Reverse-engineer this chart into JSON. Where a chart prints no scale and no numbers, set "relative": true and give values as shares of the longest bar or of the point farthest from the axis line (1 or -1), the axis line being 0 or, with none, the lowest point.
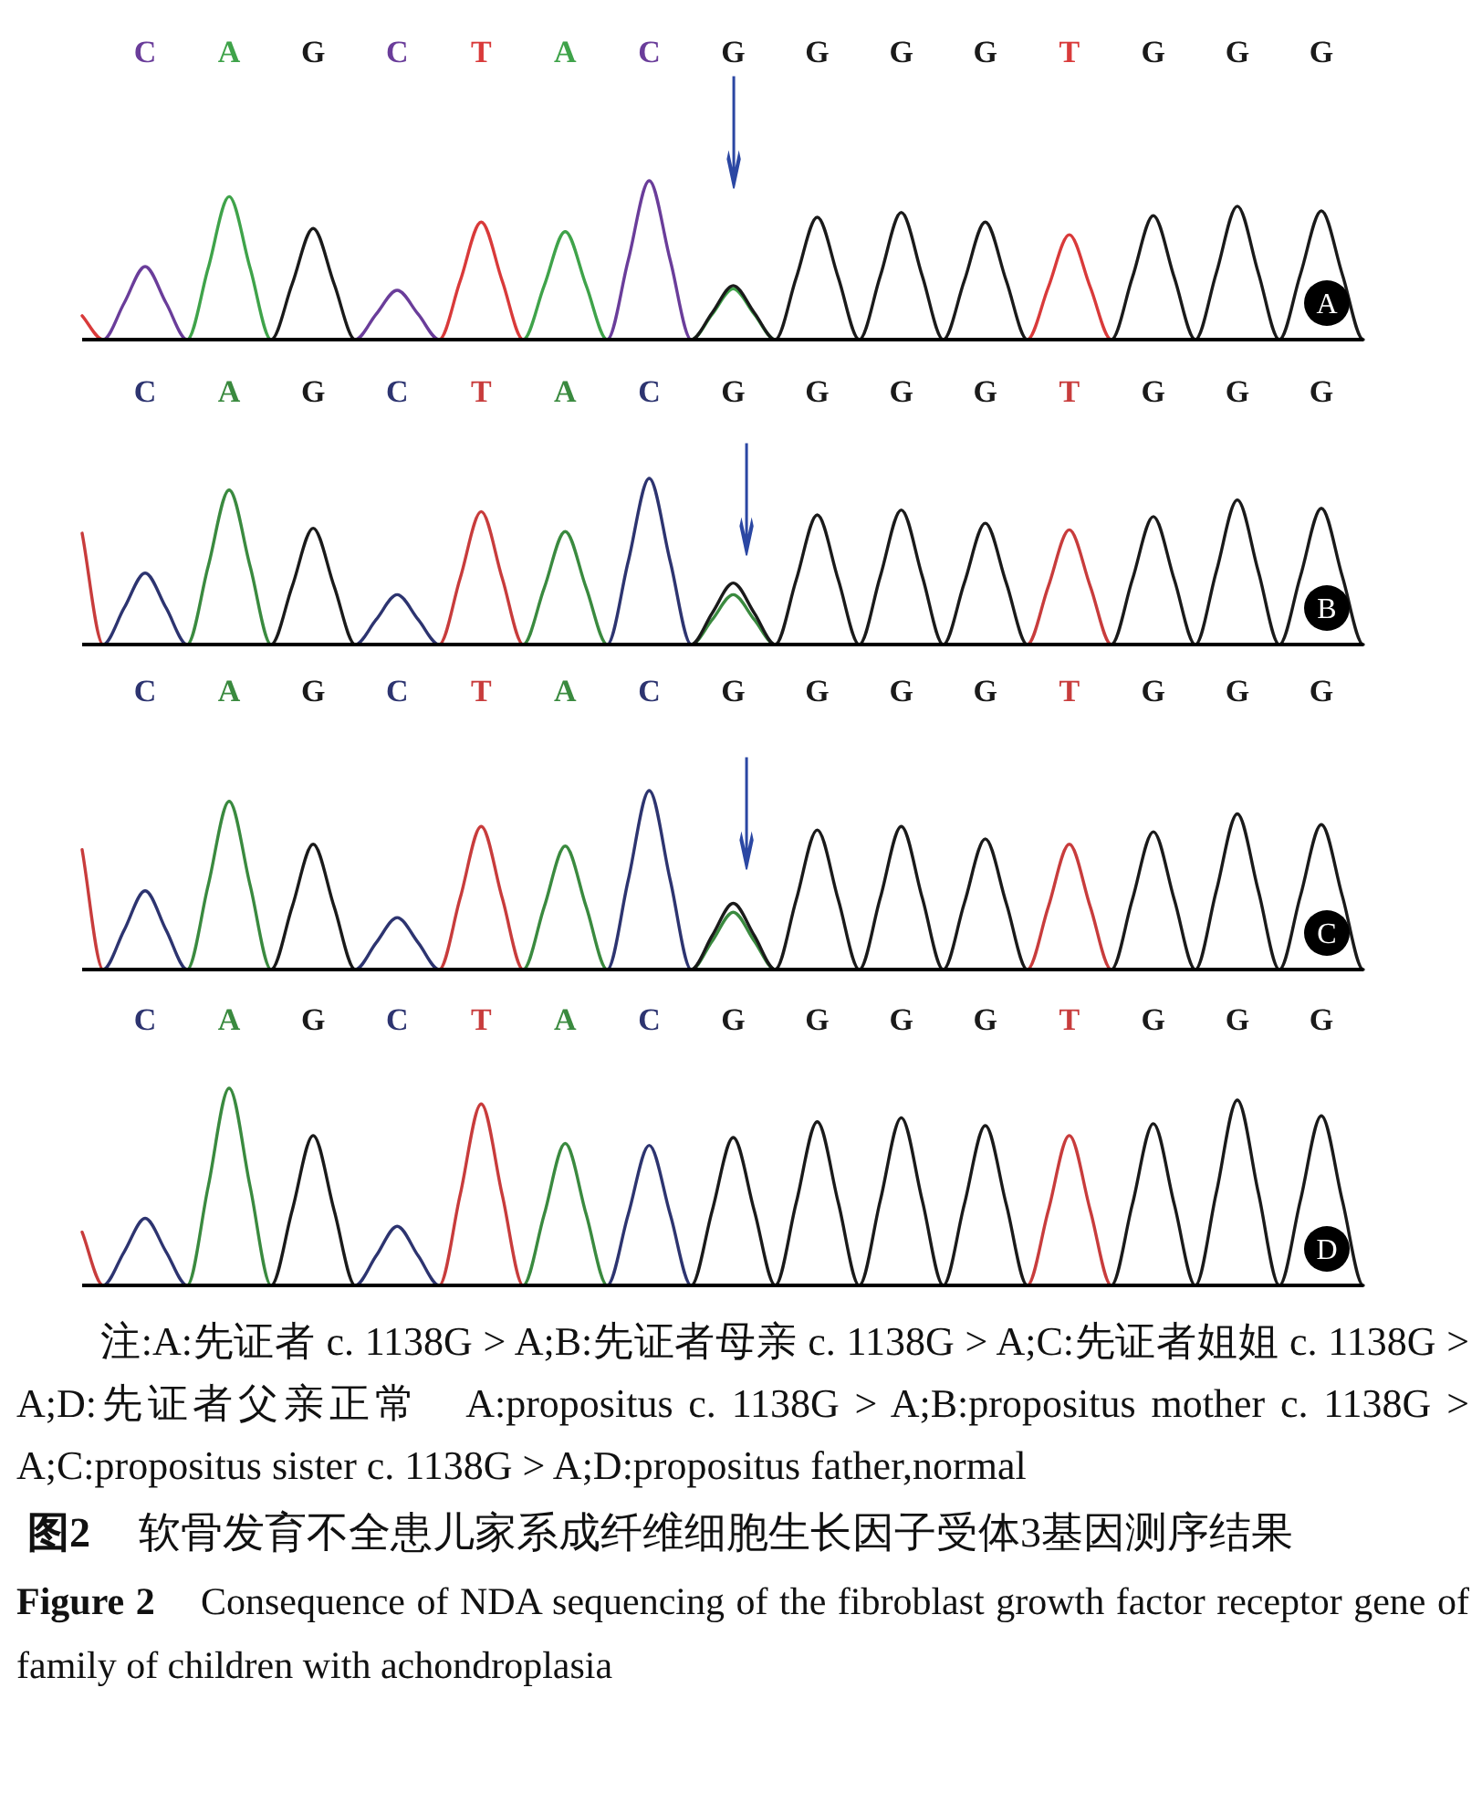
{
  "chart_data": [
    {
      "type": "line",
      "title": "A",
      "relative": true,
      "categories": [
        null,
        null,
        null,
        "C",
        null,
        null,
        null,
        "A",
        null,
        null,
        null,
        "G",
        null,
        null,
        null,
        "C",
        null,
        null,
        null,
        "T",
        null,
        null,
        null,
        "A",
        null,
        null,
        null,
        "C",
        null,
        null,
        null,
        "G",
        null,
        null,
        null,
        "G",
        null,
        null,
        null,
        "G",
        null,
        null,
        null,
        "G",
        null,
        null,
        null,
        "T",
        null,
        null,
        null,
        "G",
        null,
        null,
        null,
        "G",
        null,
        null,
        null,
        "G",
        null,
        null
      ],
      "annotations": [
        "↓"
      ],
      "series": [
        {
          "color": "#6a3d9a",
          "values": [
            null,
            0,
            0.23,
            0.46,
            0.23,
            0,
            null,
            null,
            null,
            null,
            null,
            null,
            null,
            0,
            0.16,
            0.31,
            0.16,
            0,
            null,
            null,
            null,
            null,
            null,
            null,
            null,
            0,
            0.5,
            1,
            0.5,
            0,
            null,
            null,
            null,
            null,
            null,
            null,
            null,
            null,
            null,
            null,
            null,
            null,
            null,
            null,
            null,
            null,
            null,
            null,
            null,
            null,
            null,
            null,
            null,
            null,
            null,
            null,
            null,
            null,
            null,
            null,
            null,
            null
          ]
        },
        {
          "color": "#3fa34a",
          "values": [
            null,
            null,
            null,
            null,
            null,
            0,
            0.45,
            0.9,
            0.45,
            0,
            null,
            null,
            null,
            null,
            null,
            null,
            null,
            null,
            null,
            null,
            null,
            0,
            0.34,
            0.68,
            0.34,
            0,
            null,
            null,
            null,
            0,
            0.16,
            0.32,
            0.16,
            0,
            null,
            null,
            null,
            null,
            null,
            null,
            null,
            null,
            null,
            null,
            null,
            null,
            null,
            null,
            null,
            null,
            null,
            null,
            null,
            null,
            null,
            null,
            null,
            null,
            null,
            null,
            null,
            null
          ]
        },
        {
          "color": "#1a1a1a",
          "values": [
            null,
            null,
            null,
            null,
            null,
            null,
            null,
            null,
            null,
            0,
            0.35,
            0.7,
            0.35,
            0,
            null,
            null,
            null,
            null,
            null,
            null,
            null,
            null,
            null,
            null,
            null,
            null,
            null,
            null,
            null,
            0,
            0.17,
            0.34,
            0.17,
            0,
            0.39,
            0.77,
            0.39,
            0,
            0.4,
            0.8,
            0.4,
            0,
            0.37,
            0.74,
            0.37,
            0,
            null,
            null,
            null,
            0,
            0.39,
            0.78,
            0.39,
            0,
            0.42,
            0.84,
            0.42,
            0,
            0.41,
            0.81,
            0.41,
            0
          ]
        },
        {
          "color": "#d93a3a",
          "values": [
            0.15,
            0,
            null,
            null,
            null,
            null,
            null,
            null,
            null,
            null,
            null,
            null,
            null,
            null,
            null,
            null,
            null,
            0,
            0.37,
            0.74,
            0.37,
            0,
            null,
            null,
            null,
            null,
            null,
            null,
            null,
            null,
            null,
            null,
            null,
            null,
            null,
            null,
            null,
            null,
            null,
            null,
            null,
            null,
            null,
            null,
            null,
            0,
            0.33,
            0.66,
            0.33,
            0,
            null,
            null,
            null,
            null,
            null,
            null,
            null,
            null,
            null,
            null,
            null,
            null
          ]
        }
      ]
    },
    {
      "type": "line",
      "title": "B",
      "relative": true,
      "categories": [
        null,
        null,
        null,
        "C",
        null,
        null,
        null,
        "A",
        null,
        null,
        null,
        "G",
        null,
        null,
        null,
        "C",
        null,
        null,
        null,
        "T",
        null,
        null,
        null,
        "A",
        null,
        null,
        null,
        "C",
        null,
        null,
        null,
        "G",
        null,
        null,
        null,
        "G",
        null,
        null,
        null,
        "G",
        null,
        null,
        null,
        "G",
        null,
        null,
        null,
        "T",
        null,
        null,
        null,
        "G",
        null,
        null,
        null,
        "G",
        null,
        null,
        null,
        "G",
        null,
        null
      ],
      "annotations": [
        "↓"
      ],
      "series": [
        {
          "color": "#2d3470",
          "values": [
            null,
            0,
            0.22,
            0.43,
            0.22,
            0,
            null,
            null,
            null,
            null,
            null,
            null,
            null,
            0,
            0.15,
            0.3,
            0.15,
            0,
            null,
            null,
            null,
            null,
            null,
            null,
            null,
            0,
            0.5,
            1,
            0.5,
            0,
            null,
            null,
            null,
            null,
            null,
            null,
            null,
            null,
            null,
            null,
            null,
            null,
            null,
            null,
            null,
            null,
            null,
            null,
            null,
            null,
            null,
            null,
            null,
            null,
            null,
            null,
            null,
            null,
            null,
            null,
            null,
            null
          ]
        },
        {
          "color": "#3a8a3f",
          "values": [
            null,
            null,
            null,
            null,
            null,
            0,
            0.47,
            0.93,
            0.47,
            0,
            null,
            null,
            null,
            null,
            null,
            null,
            null,
            null,
            null,
            null,
            null,
            0,
            0.34,
            0.68,
            0.34,
            0,
            null,
            null,
            null,
            0,
            0.15,
            0.3,
            0.15,
            0,
            null,
            null,
            null,
            null,
            null,
            null,
            null,
            null,
            null,
            null,
            null,
            null,
            null,
            null,
            null,
            null,
            null,
            null,
            null,
            null,
            null,
            null,
            null,
            null,
            null,
            null,
            null,
            null
          ]
        },
        {
          "color": "#1a1a1a",
          "values": [
            null,
            null,
            null,
            null,
            null,
            null,
            null,
            null,
            null,
            0,
            0.35,
            0.7,
            0.35,
            0,
            null,
            null,
            null,
            null,
            null,
            null,
            null,
            null,
            null,
            null,
            null,
            null,
            null,
            null,
            null,
            0,
            0.19,
            0.37,
            0.19,
            0,
            0.39,
            0.78,
            0.39,
            0,
            0.41,
            0.81,
            0.41,
            0,
            0.37,
            0.73,
            0.37,
            0,
            null,
            null,
            null,
            0,
            0.39,
            0.77,
            0.39,
            0,
            0.44,
            0.87,
            0.44,
            0,
            0.41,
            0.82,
            0.41,
            0
          ]
        },
        {
          "color": "#c83c3c",
          "values": [
            0.67,
            0,
            null,
            null,
            null,
            null,
            null,
            null,
            null,
            null,
            null,
            null,
            null,
            null,
            null,
            null,
            null,
            0,
            0.4,
            0.8,
            0.4,
            0,
            null,
            null,
            null,
            null,
            null,
            null,
            null,
            null,
            null,
            null,
            null,
            null,
            null,
            null,
            null,
            null,
            null,
            null,
            null,
            null,
            null,
            null,
            null,
            0,
            0.35,
            0.69,
            0.35,
            0,
            null,
            null,
            null,
            null,
            null,
            null,
            null,
            null,
            null,
            null,
            null,
            null
          ]
        }
      ]
    },
    {
      "type": "line",
      "title": "C",
      "relative": true,
      "categories": [
        null,
        null,
        null,
        "C",
        null,
        null,
        null,
        "A",
        null,
        null,
        null,
        "G",
        null,
        null,
        null,
        "C",
        null,
        null,
        null,
        "T",
        null,
        null,
        null,
        "A",
        null,
        null,
        null,
        "C",
        null,
        null,
        null,
        "G",
        null,
        null,
        null,
        "G",
        null,
        null,
        null,
        "G",
        null,
        null,
        null,
        "G",
        null,
        null,
        null,
        "T",
        null,
        null,
        null,
        "G",
        null,
        null,
        null,
        "G",
        null,
        null,
        null,
        "G",
        null,
        null
      ],
      "annotations": [
        "↓"
      ],
      "series": [
        {
          "color": "#2d3470",
          "values": [
            null,
            0,
            0.22,
            0.44,
            0.22,
            0,
            null,
            null,
            null,
            null,
            null,
            null,
            null,
            0,
            0.15,
            0.29,
            0.15,
            0,
            null,
            null,
            null,
            null,
            null,
            null,
            null,
            0,
            0.5,
            1,
            0.5,
            0,
            null,
            null,
            null,
            null,
            null,
            null,
            null,
            null,
            null,
            null,
            null,
            null,
            null,
            null,
            null,
            null,
            null,
            null,
            null,
            null,
            null,
            null,
            null,
            null,
            null,
            null,
            null,
            null,
            null,
            null,
            null,
            null
          ]
        },
        {
          "color": "#3a8a3f",
          "values": [
            null,
            null,
            null,
            null,
            null,
            0,
            0.47,
            0.94,
            0.47,
            0,
            null,
            null,
            null,
            null,
            null,
            null,
            null,
            null,
            null,
            null,
            null,
            0,
            0.35,
            0.69,
            0.35,
            0,
            null,
            null,
            null,
            0,
            0.16,
            0.32,
            0.16,
            0,
            null,
            null,
            null,
            null,
            null,
            null,
            null,
            null,
            null,
            null,
            null,
            null,
            null,
            null,
            null,
            null,
            null,
            null,
            null,
            null,
            null,
            null,
            null,
            null,
            null,
            null,
            null,
            null
          ]
        },
        {
          "color": "#1a1a1a",
          "values": [
            null,
            null,
            null,
            null,
            null,
            null,
            null,
            null,
            null,
            0,
            0.35,
            0.7,
            0.35,
            0,
            null,
            null,
            null,
            null,
            null,
            null,
            null,
            null,
            null,
            null,
            null,
            null,
            null,
            null,
            null,
            0,
            0.19,
            0.37,
            0.19,
            0,
            0.39,
            0.78,
            0.39,
            0,
            0.4,
            0.8,
            0.4,
            0,
            0.37,
            0.73,
            0.37,
            0,
            null,
            null,
            null,
            0,
            0.39,
            0.77,
            0.39,
            0,
            0.44,
            0.87,
            0.44,
            0,
            0.41,
            0.81,
            0.41,
            0
          ]
        },
        {
          "color": "#c83c3c",
          "values": [
            0.67,
            0,
            null,
            null,
            null,
            null,
            null,
            null,
            null,
            null,
            null,
            null,
            null,
            null,
            null,
            null,
            null,
            0,
            0.4,
            0.8,
            0.4,
            0,
            null,
            null,
            null,
            null,
            null,
            null,
            null,
            null,
            null,
            null,
            null,
            null,
            null,
            null,
            null,
            null,
            null,
            null,
            null,
            null,
            null,
            null,
            null,
            0,
            0.35,
            0.7,
            0.35,
            0,
            null,
            null,
            null,
            null,
            null,
            null,
            null,
            null,
            null,
            null,
            null,
            null
          ]
        }
      ]
    },
    {
      "type": "line",
      "title": "D",
      "relative": true,
      "categories": [
        null,
        null,
        null,
        "C",
        null,
        null,
        null,
        "A",
        null,
        null,
        null,
        "G",
        null,
        null,
        null,
        "C",
        null,
        null,
        null,
        "T",
        null,
        null,
        null,
        "A",
        null,
        null,
        null,
        "C",
        null,
        null,
        null,
        "G",
        null,
        null,
        null,
        "G",
        null,
        null,
        null,
        "G",
        null,
        null,
        null,
        "G",
        null,
        null,
        null,
        "T",
        null,
        null,
        null,
        "G",
        null,
        null,
        null,
        "G",
        null,
        null,
        null,
        "G",
        null,
        null
      ],
      "series": [
        {
          "color": "#2d3470",
          "values": [
            null,
            0,
            0.17,
            0.34,
            0.17,
            0,
            null,
            null,
            null,
            null,
            null,
            null,
            null,
            0,
            0.15,
            0.3,
            0.15,
            0,
            null,
            null,
            null,
            null,
            null,
            null,
            null,
            0,
            0.36,
            0.71,
            0.36,
            0,
            null,
            null,
            null,
            null,
            null,
            null,
            null,
            null,
            null,
            null,
            null,
            null,
            null,
            null,
            null,
            null,
            null,
            null,
            null,
            null,
            null,
            null,
            null,
            null,
            null,
            null,
            null,
            null,
            null,
            null,
            null,
            null
          ]
        },
        {
          "color": "#3a8a3f",
          "values": [
            null,
            null,
            null,
            null,
            null,
            0,
            0.5,
            1,
            0.5,
            0,
            null,
            null,
            null,
            null,
            null,
            null,
            null,
            null,
            null,
            null,
            null,
            0,
            0.36,
            0.72,
            0.36,
            0,
            null,
            null,
            null,
            null,
            null,
            null,
            null,
            null,
            null,
            null,
            null,
            null,
            null,
            null,
            null,
            null,
            null,
            null,
            null,
            null,
            null,
            null,
            null,
            null,
            null,
            null,
            null,
            null,
            null,
            null,
            null,
            null,
            null,
            null,
            null,
            null
          ]
        },
        {
          "color": "#1a1a1a",
          "values": [
            null,
            null,
            null,
            null,
            null,
            null,
            null,
            null,
            null,
            0,
            0.38,
            0.76,
            0.38,
            0,
            null,
            null,
            null,
            null,
            null,
            null,
            null,
            null,
            null,
            null,
            null,
            null,
            null,
            null,
            null,
            0,
            0.38,
            0.75,
            0.38,
            0,
            0.42,
            0.83,
            0.42,
            0,
            0.43,
            0.85,
            0.43,
            0,
            0.41,
            0.81,
            0.41,
            0,
            null,
            null,
            null,
            0,
            0.41,
            0.82,
            0.41,
            0,
            0.47,
            0.94,
            0.47,
            0,
            0.43,
            0.86,
            0.43,
            0
          ]
        },
        {
          "color": "#c83c3c",
          "values": [
            0.27,
            0,
            null,
            null,
            null,
            null,
            null,
            null,
            null,
            null,
            null,
            null,
            null,
            null,
            null,
            null,
            null,
            0,
            0.46,
            0.92,
            0.46,
            0,
            null,
            null,
            null,
            null,
            null,
            null,
            null,
            null,
            null,
            null,
            null,
            null,
            null,
            null,
            null,
            null,
            null,
            null,
            null,
            null,
            null,
            null,
            null,
            0,
            0.38,
            0.76,
            0.38,
            0,
            null,
            null,
            null,
            null,
            null,
            null,
            null,
            null,
            null,
            null,
            null,
            null
          ]
        }
      ]
    },
    {
      "type": "other",
      "annotations": [
        "注:A:先证者 c. 1138G > A;B:先证者母亲 c. 1138G > A;C:先证者姐姐 c. 1138G > A;D:先证者父亲正常　A:propositus c. 1138G > A;B:propositus mother c. 1138G > A;C:propositus sister c. 1138G > A;D:propositus father,normal"
      ],
      "title": "**图2** 软骨发育不全患儿家系成纤维细胞生长因子受体3基因测序结果",
      "subtitle": "**Figure 2** Consequence of NDA sequencing of the fibroblast growth factor receptor gene of family of children with achondroplasia"
    }
  ]
}
